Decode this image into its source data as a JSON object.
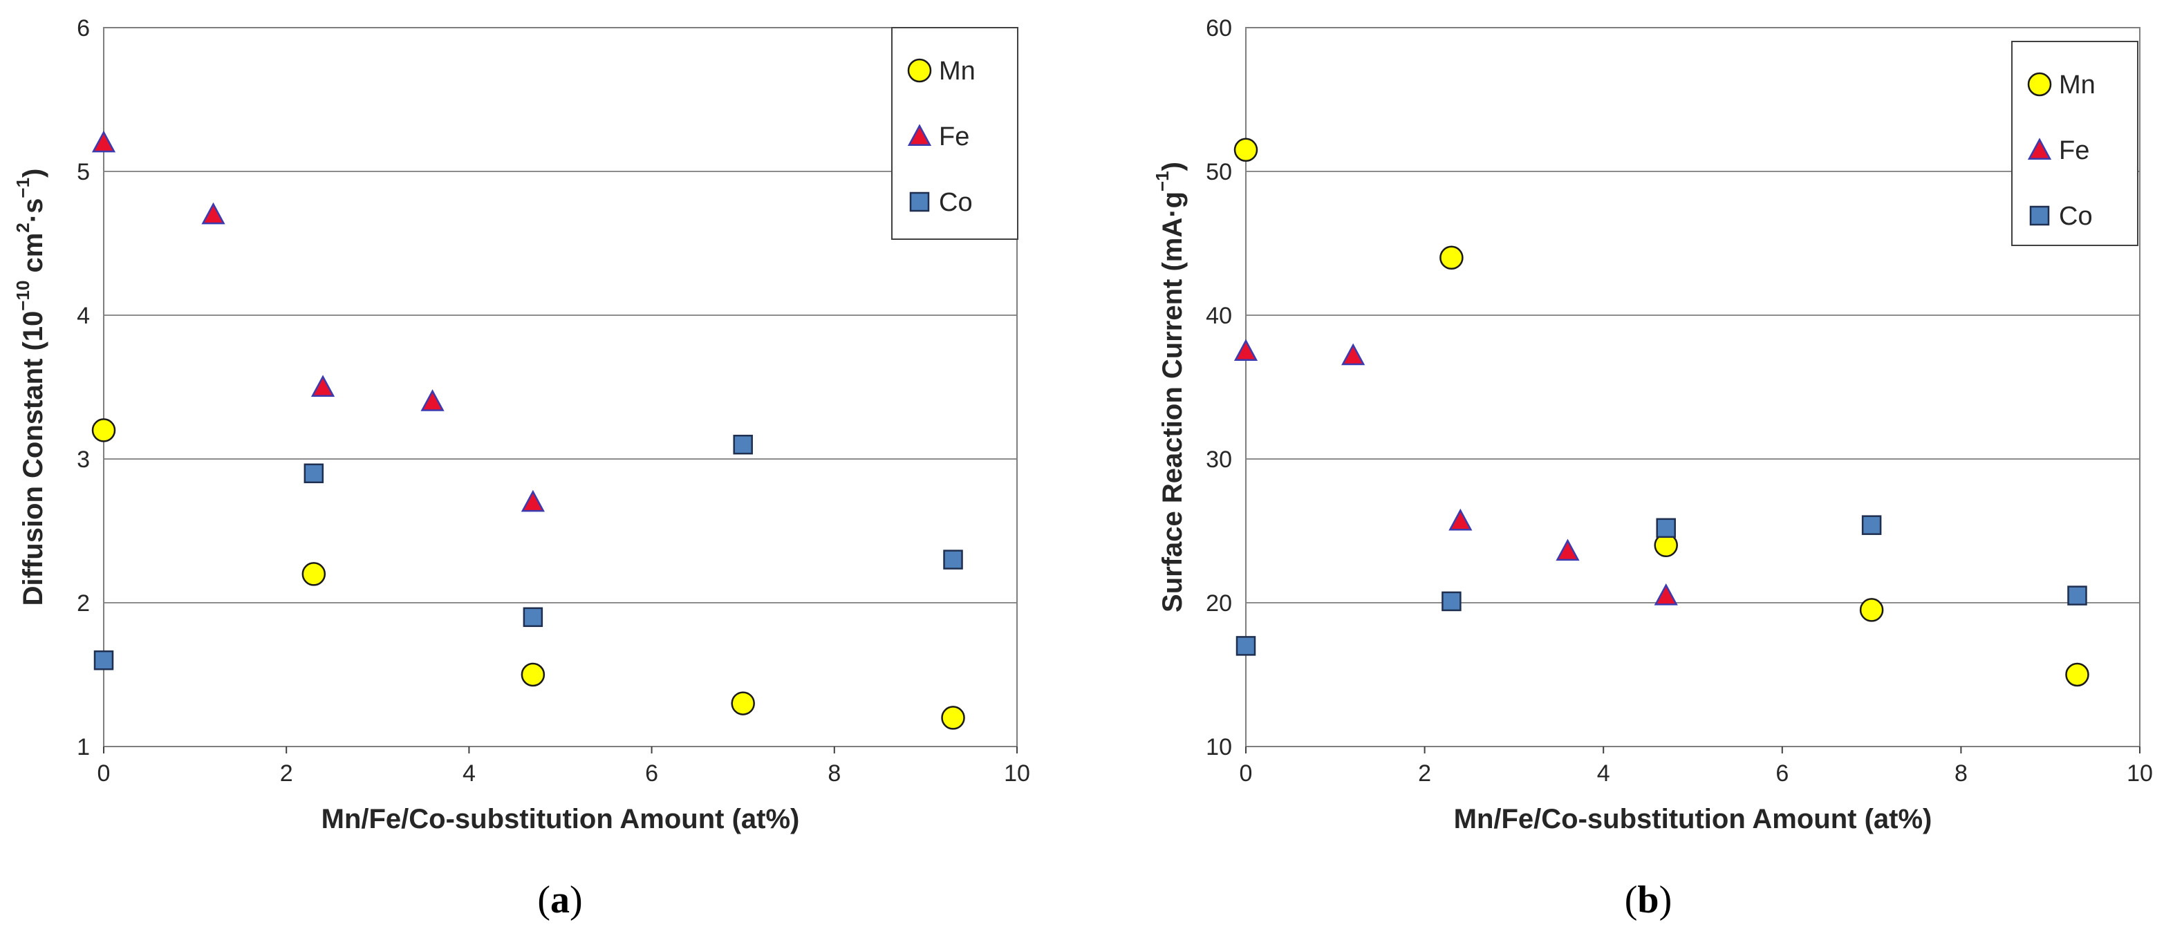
{
  "chart_data": [
    {
      "type": "scatter",
      "panel_label": "a",
      "xlabel": "Mn/Fe/Co-substitution Amount (at%)",
      "ylabel_main": "Diffusion Constant (10",
      "ylabel_exp1": "−10",
      "ylabel_mid": " cm",
      "ylabel_exp2": "2",
      "ylabel_dot": "·s",
      "ylabel_exp3": "−1",
      "ylabel_close": ")",
      "xlim": [
        0,
        10
      ],
      "ylim": [
        1,
        6
      ],
      "xticks": [
        "0",
        "2",
        "4",
        "6",
        "8",
        "10"
      ],
      "yticks": [
        "1",
        "2",
        "3",
        "4",
        "5",
        "6"
      ],
      "grid": true,
      "legend_position": "top-right",
      "series": [
        {
          "name": "Mn",
          "marker": "circle",
          "x": [
            0,
            2.3,
            4.7,
            7.0,
            9.3
          ],
          "y": [
            3.2,
            2.2,
            1.5,
            1.3,
            1.2
          ]
        },
        {
          "name": "Fe",
          "marker": "triangle",
          "x": [
            0,
            1.2,
            2.4,
            3.6,
            4.7
          ],
          "y": [
            5.2,
            4.7,
            3.5,
            3.4,
            2.7
          ]
        },
        {
          "name": "Co",
          "marker": "square",
          "x": [
            0,
            2.3,
            4.7,
            7.0,
            9.3
          ],
          "y": [
            1.6,
            2.9,
            1.9,
            3.1,
            2.3
          ]
        }
      ]
    },
    {
      "type": "scatter",
      "panel_label": "b",
      "xlabel": "Mn/Fe/Co-substitution Amount (at%)",
      "ylabel_main": "Surface Reaction Current (mA·g",
      "ylabel_exp1": "−1",
      "ylabel_close": ")",
      "xlim": [
        0,
        10
      ],
      "ylim": [
        10,
        60
      ],
      "xticks": [
        "0",
        "2",
        "4",
        "6",
        "8",
        "10"
      ],
      "yticks": [
        "10",
        "20",
        "30",
        "40",
        "50",
        "60"
      ],
      "grid": true,
      "legend_position": "top-right",
      "series": [
        {
          "name": "Mn",
          "marker": "circle",
          "x": [
            0,
            2.3,
            4.7,
            7.0,
            9.3
          ],
          "y": [
            51.5,
            44.0,
            24.0,
            19.5,
            15.0
          ]
        },
        {
          "name": "Fe",
          "marker": "triangle",
          "x": [
            0,
            1.2,
            2.4,
            3.6,
            4.7
          ],
          "y": [
            37.5,
            37.2,
            25.7,
            23.6,
            20.5
          ]
        },
        {
          "name": "Co",
          "marker": "square",
          "x": [
            0,
            2.3,
            4.7,
            7.0,
            9.3
          ],
          "y": [
            17.0,
            20.1,
            25.2,
            25.4,
            20.5
          ]
        }
      ]
    }
  ],
  "colors": {
    "mn_fill": "#ffff00",
    "fe_fill": "#e8112d",
    "co_fill": "#4f81bd",
    "mn_edge": "#1a1a1a",
    "fe_edge": "#3b3bb0",
    "co_edge": "#1f2f4f",
    "grid": "#8c8c8c"
  }
}
